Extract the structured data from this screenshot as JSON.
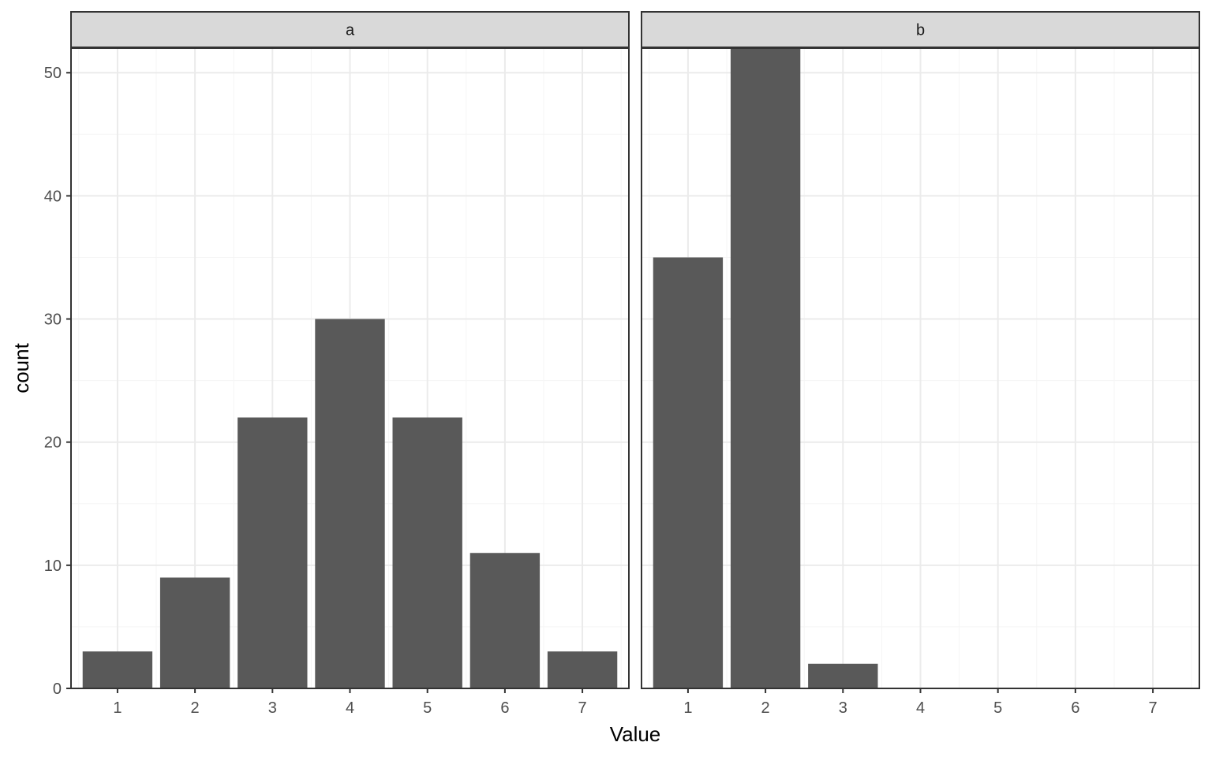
{
  "chart_data": {
    "type": "bar",
    "xlabel": "Value",
    "ylabel": "count",
    "ylim": [
      0,
      52
    ],
    "yticks": [
      0,
      10,
      20,
      30,
      40,
      50
    ],
    "categories": [
      "1",
      "2",
      "3",
      "4",
      "5",
      "6",
      "7"
    ],
    "grid": true,
    "panels": [
      {
        "label": "a",
        "values": [
          3,
          9,
          22,
          30,
          22,
          11,
          3
        ]
      },
      {
        "label": "b",
        "values": [
          35,
          52,
          2,
          0,
          0,
          0,
          0
        ]
      }
    ],
    "colors": {
      "bar": "#595959",
      "strip": "#d9d9d9",
      "grid_major": "#ebebeb",
      "grid_minor": "#f5f5f5",
      "border": "#333333"
    }
  }
}
